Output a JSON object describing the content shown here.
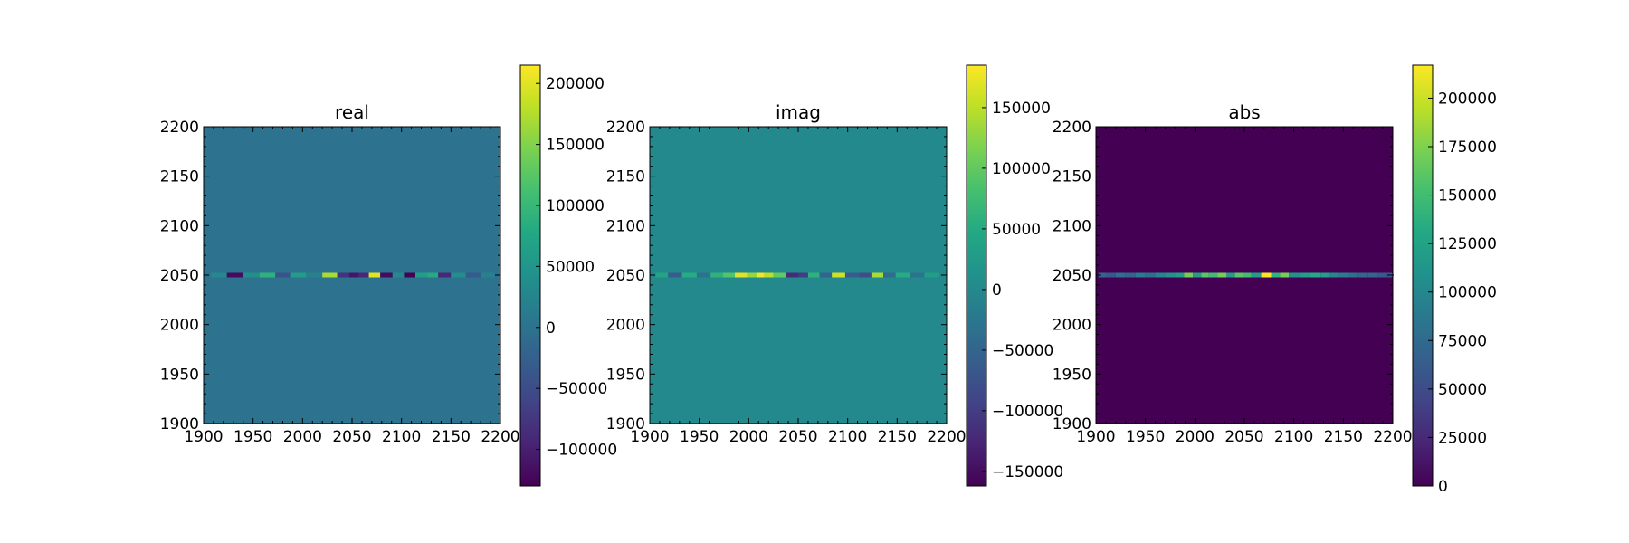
{
  "chart_data": [
    {
      "type": "heatmap",
      "title": "real",
      "x_ticks": [
        1900,
        1950,
        2000,
        2050,
        2100,
        2150,
        2200
      ],
      "y_ticks": [
        1900,
        1950,
        2000,
        2050,
        2100,
        2150,
        2200
      ],
      "xlim": [
        1900,
        2200
      ],
      "ylim": [
        1900,
        2200
      ],
      "colormap": "viridis",
      "background_value": 0,
      "stripe_row": 2050,
      "stripe_points": [
        {
          "x": 1915,
          "v": 30000
        },
        {
          "x": 1932,
          "v": -120000
        },
        {
          "x": 1948,
          "v": 40000
        },
        {
          "x": 1965,
          "v": 90000
        },
        {
          "x": 1980,
          "v": -40000
        },
        {
          "x": 1995,
          "v": 60000
        },
        {
          "x": 2012,
          "v": 20000
        },
        {
          "x": 2028,
          "v": 170000
        },
        {
          "x": 2042,
          "v": -80000
        },
        {
          "x": 2052,
          "v": -110000
        },
        {
          "x": 2062,
          "v": -90000
        },
        {
          "x": 2072,
          "v": 200000
        },
        {
          "x": 2085,
          "v": -120000
        },
        {
          "x": 2097,
          "v": 30000
        },
        {
          "x": 2108,
          "v": -130000
        },
        {
          "x": 2120,
          "v": 60000
        },
        {
          "x": 2132,
          "v": 80000
        },
        {
          "x": 2142,
          "v": -90000
        },
        {
          "x": 2158,
          "v": 40000
        },
        {
          "x": 2172,
          "v": -30000
        },
        {
          "x": 2188,
          "v": 20000
        }
      ],
      "colorbar": {
        "vmin": -130000,
        "vmax": 215000,
        "ticks": [
          -100000,
          -50000,
          0,
          50000,
          100000,
          150000,
          200000
        ],
        "tick_labels": [
          "−100000",
          "−50000",
          "0",
          "50000",
          "100000",
          "150000",
          "200000"
        ]
      }
    },
    {
      "type": "heatmap",
      "title": "imag",
      "x_ticks": [
        1900,
        1950,
        2000,
        2050,
        2100,
        2150,
        2200
      ],
      "y_ticks": [
        1900,
        1950,
        2000,
        2050,
        2100,
        2150,
        2200
      ],
      "xlim": [
        1900,
        2200
      ],
      "ylim": [
        1900,
        2200
      ],
      "colormap": "viridis",
      "background_value": 0,
      "stripe_row": 2050,
      "stripe_points": [
        {
          "x": 1912,
          "v": 40000
        },
        {
          "x": 1925,
          "v": -60000
        },
        {
          "x": 1940,
          "v": 50000
        },
        {
          "x": 1955,
          "v": -30000
        },
        {
          "x": 1968,
          "v": 60000
        },
        {
          "x": 1980,
          "v": 90000
        },
        {
          "x": 1992,
          "v": 170000
        },
        {
          "x": 2005,
          "v": 130000
        },
        {
          "x": 2012,
          "v": 180000
        },
        {
          "x": 2020,
          "v": 150000
        },
        {
          "x": 2030,
          "v": 100000
        },
        {
          "x": 2045,
          "v": -120000
        },
        {
          "x": 2055,
          "v": -100000
        },
        {
          "x": 2065,
          "v": 60000
        },
        {
          "x": 2078,
          "v": -50000
        },
        {
          "x": 2090,
          "v": 160000
        },
        {
          "x": 2105,
          "v": -60000
        },
        {
          "x": 2118,
          "v": -80000
        },
        {
          "x": 2130,
          "v": 140000
        },
        {
          "x": 2142,
          "v": -40000
        },
        {
          "x": 2155,
          "v": 50000
        },
        {
          "x": 2170,
          "v": -30000
        },
        {
          "x": 2185,
          "v": 30000
        }
      ],
      "colorbar": {
        "vmin": -162000,
        "vmax": 185000,
        "ticks": [
          -150000,
          -100000,
          -50000,
          0,
          50000,
          100000,
          150000
        ],
        "tick_labels": [
          "−150000",
          "−100000",
          "−50000",
          "0",
          "50000",
          "100000",
          "150000"
        ]
      }
    },
    {
      "type": "heatmap",
      "title": "abs",
      "x_ticks": [
        1900,
        1950,
        2000,
        2050,
        2100,
        2150,
        2200
      ],
      "y_ticks": [
        1900,
        1950,
        2000,
        2050,
        2100,
        2150,
        2200
      ],
      "xlim": [
        1900,
        2200
      ],
      "ylim": [
        1900,
        2200
      ],
      "colormap": "viridis",
      "background_value": 0,
      "stripe_row": 2050,
      "stripe_points": [
        {
          "x": 1905,
          "v": 70000
        },
        {
          "x": 1915,
          "v": 60000
        },
        {
          "x": 1925,
          "v": 80000
        },
        {
          "x": 1935,
          "v": 70000
        },
        {
          "x": 1945,
          "v": 90000
        },
        {
          "x": 1955,
          "v": 80000
        },
        {
          "x": 1965,
          "v": 100000
        },
        {
          "x": 1975,
          "v": 110000
        },
        {
          "x": 1985,
          "v": 120000
        },
        {
          "x": 1993,
          "v": 170000
        },
        {
          "x": 2003,
          "v": 120000
        },
        {
          "x": 2010,
          "v": 160000
        },
        {
          "x": 2018,
          "v": 150000
        },
        {
          "x": 2028,
          "v": 170000
        },
        {
          "x": 2036,
          "v": 120000
        },
        {
          "x": 2045,
          "v": 160000
        },
        {
          "x": 2052,
          "v": 150000
        },
        {
          "x": 2062,
          "v": 120000
        },
        {
          "x": 2072,
          "v": 215000
        },
        {
          "x": 2082,
          "v": 140000
        },
        {
          "x": 2090,
          "v": 170000
        },
        {
          "x": 2100,
          "v": 110000
        },
        {
          "x": 2110,
          "v": 120000
        },
        {
          "x": 2122,
          "v": 130000
        },
        {
          "x": 2132,
          "v": 120000
        },
        {
          "x": 2140,
          "v": 100000
        },
        {
          "x": 2150,
          "v": 90000
        },
        {
          "x": 2160,
          "v": 80000
        },
        {
          "x": 2170,
          "v": 70000
        },
        {
          "x": 2180,
          "v": 70000
        },
        {
          "x": 2190,
          "v": 60000
        },
        {
          "x": 2198,
          "v": 60000
        }
      ],
      "colorbar": {
        "vmin": 0,
        "vmax": 217000,
        "ticks": [
          0,
          25000,
          50000,
          75000,
          100000,
          125000,
          150000,
          175000,
          200000
        ],
        "tick_labels": [
          "0",
          "25000",
          "50000",
          "75000",
          "100000",
          "125000",
          "150000",
          "175000",
          "200000"
        ]
      }
    }
  ]
}
